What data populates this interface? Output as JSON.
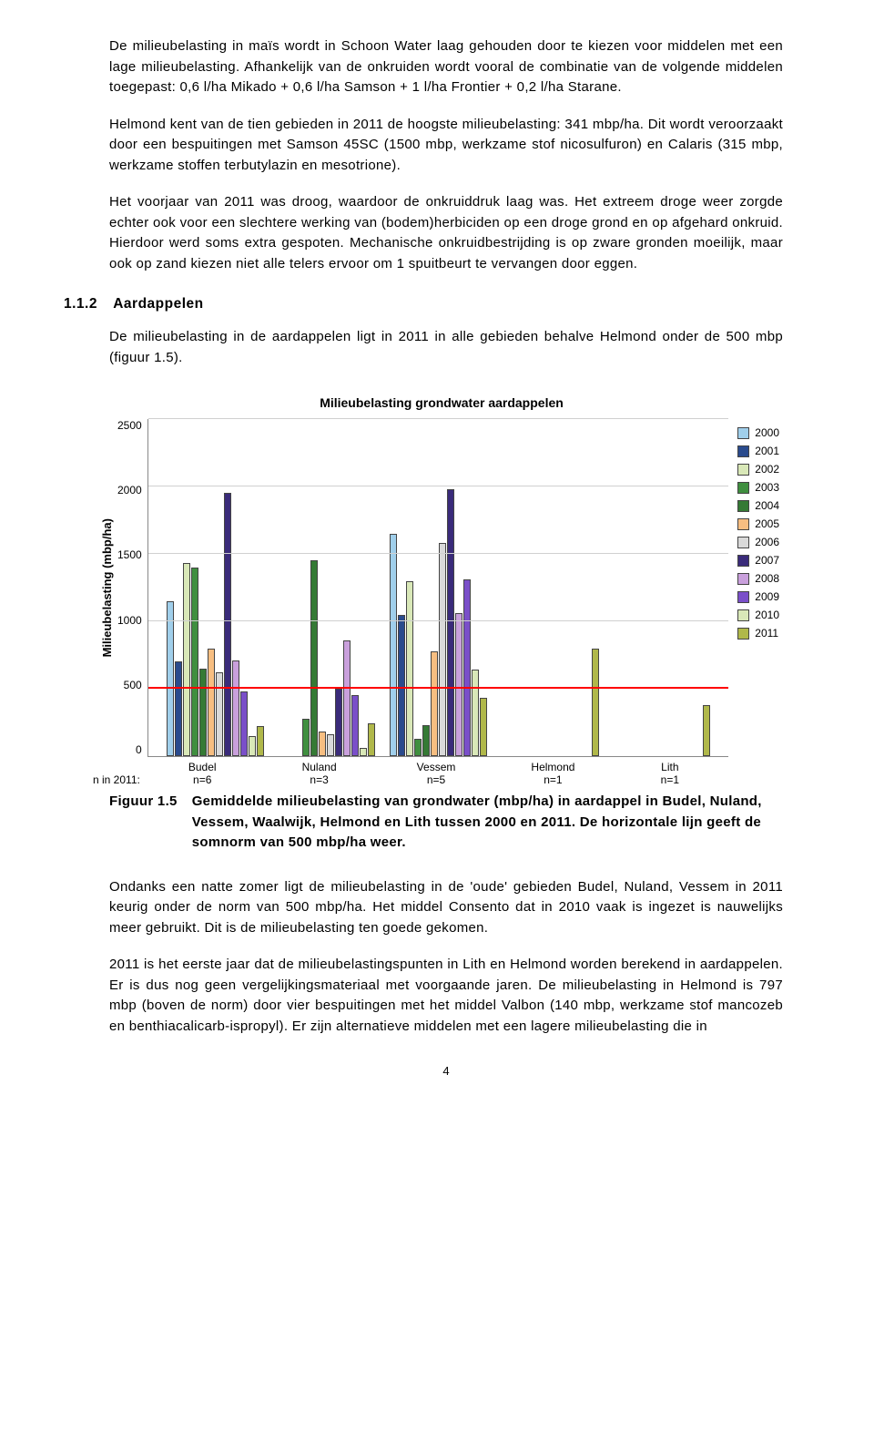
{
  "paragraphs": {
    "p1": "De milieubelasting in maïs wordt in Schoon Water laag gehouden door te kiezen voor middelen met een lage milieubelasting. Afhankelijk van de onkruiden wordt vooral de combinatie van de volgende middelen toegepast: 0,6 l/ha Mikado + 0,6 l/ha Samson + 1 l/ha Frontier + 0,2 l/ha Starane.",
    "p2": "Helmond kent van de tien gebieden in 2011 de hoogste milieubelasting: 341 mbp/ha. Dit wordt veroorzaakt door een bespuitingen met Samson 45SC (1500 mbp, werkzame stof nicosulfuron) en Calaris (315 mbp, werkzame stoffen terbutylazin en mesotrione).",
    "p3": "Het voorjaar van 2011 was droog, waardoor de onkruiddruk laag was. Het extreem droge weer zorgde echter ook voor een slechtere werking van (bodem)herbiciden op een droge grond en op afgehard onkruid. Hierdoor werd soms extra gespoten. Mechanische onkruidbestrijding is op zware gronden moeilijk, maar ook op zand kiezen niet alle telers ervoor om 1 spuitbeurt te vervangen door eggen."
  },
  "section": {
    "num": "1.1.2",
    "title": "Aardappelen",
    "p1": "De milieubelasting in de aardappelen ligt in 2011 in alle gebieden behalve Helmond onder de 500 mbp (figuur 1.5)."
  },
  "chart": {
    "type": "bar",
    "title": "Milieubelasting grondwater aardappelen",
    "ylabel": "Milieubelasting (mbp/ha)",
    "ylim": [
      0,
      2500
    ],
    "ytick_step": 500,
    "yticks": [
      "2500",
      "2000",
      "1500",
      "1000",
      "500",
      "0"
    ],
    "grid_color": "#d0d0d0",
    "plot_bg": "#ffffff",
    "norm_value": 500,
    "norm_color": "#ff0000",
    "categories": [
      "Budel",
      "Nuland",
      "Vessem",
      "Helmond",
      "Lith"
    ],
    "n_label_lead": "n in 2011:",
    "n_labels": [
      "n=6",
      "n=3",
      "n=5",
      "n=1",
      "n=1"
    ],
    "years": [
      {
        "key": "2000",
        "label": "2000",
        "color": "#a0cfeb"
      },
      {
        "key": "2001",
        "label": "2001",
        "color": "#2a4b8d"
      },
      {
        "key": "2002",
        "label": "2002",
        "color": "#d9e8b8"
      },
      {
        "key": "2003",
        "label": "2003",
        "color": "#3f8f3f"
      },
      {
        "key": "2004",
        "label": "2004",
        "color": "#357a35"
      },
      {
        "key": "2005",
        "label": "2005",
        "color": "#f7be81"
      },
      {
        "key": "2006",
        "label": "2006",
        "color": "#d9d9d9"
      },
      {
        "key": "2007",
        "label": "2007",
        "color": "#3a2b7a"
      },
      {
        "key": "2008",
        "label": "2008",
        "color": "#c9a0dc"
      },
      {
        "key": "2009",
        "label": "2009",
        "color": "#7a4fc9"
      },
      {
        "key": "2010",
        "label": "2010",
        "color": "#d9e8b8"
      },
      {
        "key": "2011",
        "label": "2011",
        "color": "#b0b84a"
      }
    ],
    "data": {
      "Budel": {
        "2000": 1150,
        "2001": 700,
        "2002": 1430,
        "2003": 1400,
        "2004": 650,
        "2005": 800,
        "2006": 620,
        "2007": 1950,
        "2008": 710,
        "2009": 480,
        "2010": 150,
        "2011": 220
      },
      "Nuland": {
        "2000": null,
        "2001": null,
        "2002": null,
        "2003": 280,
        "2004": 1450,
        "2005": 180,
        "2006": 160,
        "2007": 500,
        "2008": 860,
        "2009": 450,
        "2010": 60,
        "2011": 240
      },
      "Vessem": {
        "2000": 1650,
        "2001": 1050,
        "2002": 1300,
        "2003": 130,
        "2004": 230,
        "2005": 780,
        "2006": 1580,
        "2007": 1980,
        "2008": 1060,
        "2009": 1310,
        "2010": 640,
        "2011": 430
      },
      "Helmond": {
        "2000": null,
        "2001": null,
        "2002": null,
        "2003": null,
        "2004": null,
        "2005": null,
        "2006": null,
        "2007": null,
        "2008": null,
        "2009": null,
        "2010": null,
        "2011": 800
      },
      "Lith": {
        "2000": null,
        "2001": null,
        "2002": null,
        "2003": null,
        "2004": null,
        "2005": null,
        "2006": null,
        "2007": null,
        "2008": null,
        "2009": null,
        "2010": null,
        "2011": 380
      }
    }
  },
  "caption": {
    "num": "Figuur 1.5",
    "text": "Gemiddelde milieubelasting van grondwater (mbp/ha) in aardappel in Budel, Nuland, Vessem, Waalwijk, Helmond en Lith tussen 2000 en 2011. De horizontale lijn geeft de somnorm van 500 mbp/ha weer."
  },
  "post": {
    "p1": "Ondanks een natte zomer ligt de milieubelasting in de 'oude' gebieden Budel, Nuland, Vessem in 2011 keurig onder de norm van 500 mbp/ha. Het middel Consento dat in 2010 vaak is ingezet is nauwelijks meer gebruikt. Dit is de milieubelasting ten goede gekomen.",
    "p2": "2011 is het eerste jaar dat de milieubelastingspunten in Lith en Helmond worden berekend in aardappelen. Er is dus nog geen vergelijkingsmateriaal met voorgaande jaren. De milieubelasting in Helmond is 797 mbp (boven de norm) door vier bespuitingen met het middel Valbon (140 mbp, werkzame stof mancozeb en benthiacalicarb-ispropyl). Er zijn alternatieve middelen met een lagere milieubelasting die in"
  },
  "pagenum": "4"
}
